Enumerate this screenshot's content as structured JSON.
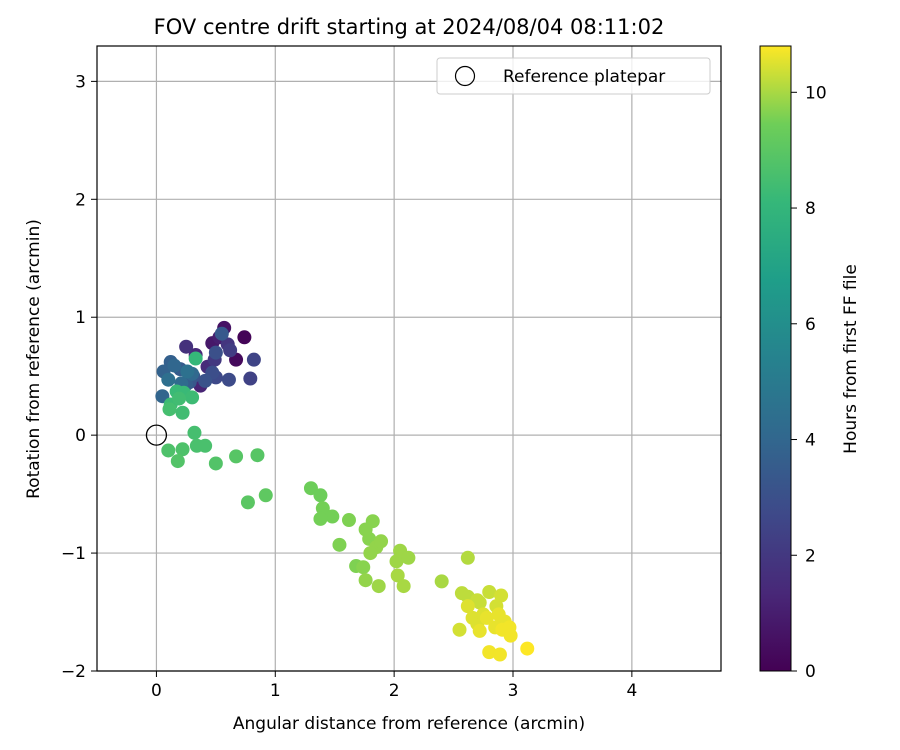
{
  "chart_data": {
    "type": "scatter",
    "title": "FOV centre drift starting at 2024/08/04 08:11:02",
    "xlabel": "Angular distance from reference (arcmin)",
    "ylabel": "Rotation from reference (arcmin)",
    "xlim": [
      -0.5,
      4.75
    ],
    "ylim": [
      -2,
      3.3
    ],
    "xticks": [
      0,
      1,
      2,
      3,
      4
    ],
    "xtick_labels": [
      "0",
      "1",
      "2",
      "3",
      "4"
    ],
    "yticks": [
      -2,
      -1,
      0,
      1,
      2,
      3
    ],
    "ytick_labels": [
      "−2",
      "−1",
      "0",
      "1",
      "2",
      "3"
    ],
    "grid": true,
    "legend": {
      "placement": "top-right",
      "entries": [
        "Reference platepar"
      ]
    },
    "colorbar": {
      "label": "Hours from first FF file",
      "range": [
        0,
        10.8
      ],
      "ticks": [
        0,
        2,
        4,
        6,
        8,
        10
      ],
      "tick_labels": [
        "0",
        "2",
        "4",
        "6",
        "8",
        "10"
      ],
      "colormap": "viridis"
    },
    "reference_point": {
      "label": "Reference platepar",
      "x": 0,
      "y": 0
    },
    "series": [
      {
        "points": [
          [
            0.74,
            0.83,
            0.1
          ],
          [
            0.67,
            0.64,
            0.3
          ],
          [
            0.57,
            0.91,
            0.6
          ],
          [
            0.47,
            0.78,
            0.8
          ],
          [
            0.53,
            0.83,
            1.0
          ],
          [
            0.37,
            0.42,
            1.2
          ],
          [
            0.33,
            0.68,
            1.4
          ],
          [
            0.43,
            0.58,
            1.5
          ],
          [
            0.25,
            0.75,
            1.7
          ],
          [
            0.6,
            0.77,
            1.9
          ],
          [
            0.49,
            0.64,
            2.0
          ],
          [
            0.62,
            0.72,
            2.2
          ],
          [
            0.79,
            0.48,
            2.4
          ],
          [
            0.82,
            0.64,
            2.5
          ],
          [
            0.5,
            0.49,
            2.7
          ],
          [
            0.61,
            0.47,
            2.8
          ],
          [
            0.47,
            0.53,
            2.9
          ],
          [
            0.5,
            0.7,
            3.0
          ],
          [
            0.41,
            0.46,
            3.1
          ],
          [
            0.31,
            0.5,
            3.2
          ],
          [
            0.28,
            0.45,
            3.3
          ],
          [
            0.55,
            0.86,
            3.4
          ],
          [
            0.2,
            0.56,
            3.5
          ],
          [
            0.25,
            0.43,
            3.6
          ],
          [
            0.12,
            0.62,
            3.7
          ],
          [
            0.06,
            0.54,
            3.8
          ],
          [
            0.05,
            0.33,
            3.9
          ],
          [
            0.15,
            0.59,
            4.0
          ],
          [
            0.3,
            0.52,
            4.1
          ],
          [
            0.21,
            0.44,
            4.2
          ],
          [
            0.1,
            0.47,
            4.4
          ],
          [
            0.26,
            0.54,
            4.5
          ],
          [
            0.33,
            0.65,
            8.1
          ],
          [
            0.17,
            0.37,
            8.2
          ],
          [
            0.23,
            0.36,
            8.2
          ],
          [
            0.12,
            0.26,
            8.3
          ],
          [
            0.3,
            0.32,
            8.3
          ],
          [
            0.22,
            0.19,
            8.4
          ],
          [
            0.19,
            0.31,
            8.4
          ],
          [
            0.11,
            0.22,
            8.5
          ],
          [
            0.32,
            0.02,
            8.5
          ],
          [
            0.34,
            -0.09,
            8.6
          ],
          [
            0.41,
            -0.09,
            8.6
          ],
          [
            0.22,
            -0.12,
            8.7
          ],
          [
            0.1,
            -0.13,
            8.7
          ],
          [
            0.18,
            -0.22,
            8.8
          ],
          [
            0.5,
            -0.24,
            8.8
          ],
          [
            0.67,
            -0.18,
            8.9
          ],
          [
            0.85,
            -0.17,
            8.9
          ],
          [
            0.77,
            -0.57,
            9.0
          ],
          [
            0.92,
            -0.51,
            9.1
          ],
          [
            1.3,
            -0.45,
            9.4
          ],
          [
            1.38,
            -0.51,
            9.4
          ],
          [
            1.4,
            -0.62,
            9.5
          ],
          [
            1.48,
            -0.69,
            9.5
          ],
          [
            1.38,
            -0.71,
            9.5
          ],
          [
            1.54,
            -0.93,
            9.6
          ],
          [
            1.62,
            -0.72,
            9.6
          ],
          [
            1.68,
            -1.11,
            9.6
          ],
          [
            1.74,
            -1.12,
            9.7
          ],
          [
            1.76,
            -0.8,
            9.7
          ],
          [
            1.79,
            -0.88,
            9.7
          ],
          [
            1.82,
            -0.73,
            9.7
          ],
          [
            1.85,
            -0.95,
            9.8
          ],
          [
            1.89,
            -0.9,
            9.8
          ],
          [
            1.8,
            -1.0,
            9.8
          ],
          [
            1.76,
            -1.23,
            9.8
          ],
          [
            1.87,
            -1.28,
            9.9
          ],
          [
            2.02,
            -1.07,
            9.9
          ],
          [
            2.05,
            -0.98,
            9.9
          ],
          [
            2.12,
            -1.04,
            9.9
          ],
          [
            2.03,
            -1.19,
            10.0
          ],
          [
            2.08,
            -1.28,
            10.0
          ],
          [
            2.4,
            -1.24,
            10.0
          ],
          [
            2.62,
            -1.04,
            10.1
          ],
          [
            2.57,
            -1.34,
            10.2
          ],
          [
            2.62,
            -1.37,
            10.2
          ],
          [
            2.7,
            -1.4,
            10.3
          ],
          [
            2.72,
            -1.42,
            10.3
          ],
          [
            2.8,
            -1.33,
            10.3
          ],
          [
            2.86,
            -1.45,
            10.4
          ],
          [
            2.9,
            -1.36,
            10.4
          ],
          [
            2.55,
            -1.65,
            10.4
          ],
          [
            2.62,
            -1.45,
            10.5
          ],
          [
            2.66,
            -1.55,
            10.5
          ],
          [
            2.7,
            -1.6,
            10.5
          ],
          [
            2.75,
            -1.52,
            10.5
          ],
          [
            2.78,
            -1.55,
            10.6
          ],
          [
            2.88,
            -1.52,
            10.6
          ],
          [
            2.93,
            -1.58,
            10.6
          ],
          [
            2.72,
            -1.66,
            10.6
          ],
          [
            2.85,
            -1.63,
            10.6
          ],
          [
            2.91,
            -1.65,
            10.7
          ],
          [
            2.97,
            -1.63,
            10.7
          ],
          [
            2.98,
            -1.7,
            10.7
          ],
          [
            2.8,
            -1.84,
            10.7
          ],
          [
            2.89,
            -1.86,
            10.7
          ],
          [
            3.12,
            -1.81,
            10.8
          ]
        ]
      }
    ]
  },
  "colors": {
    "axis": "#000000",
    "grid": "#b0b0b0"
  }
}
